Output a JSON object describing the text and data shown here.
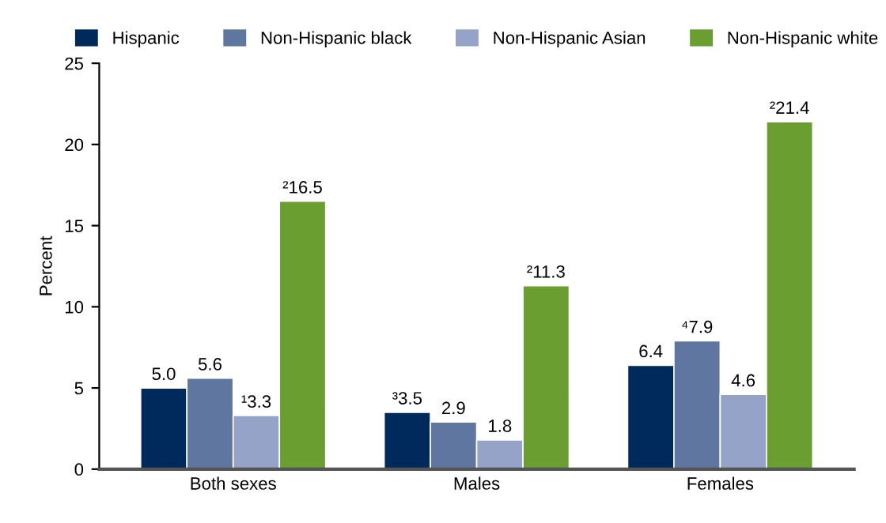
{
  "chart_data": {
    "type": "bar",
    "ylabel": "Percent",
    "categories": [
      "Both sexes",
      "Males",
      "Females"
    ],
    "series": [
      {
        "name": "Hispanic",
        "color": "#002a5c",
        "values": [
          5.0,
          3.5,
          6.4
        ],
        "value_labels": [
          "5.0",
          "³3.5",
          "6.4"
        ]
      },
      {
        "name": "Non-Hispanic black",
        "color": "#5f77a0",
        "values": [
          5.6,
          2.9,
          7.9
        ],
        "value_labels": [
          "5.6",
          "2.9",
          "⁴7.9"
        ]
      },
      {
        "name": "Non-Hispanic Asian",
        "color": "#94a3c7",
        "values": [
          3.3,
          1.8,
          4.6
        ],
        "value_labels": [
          "¹3.3",
          "1.8",
          "4.6"
        ]
      },
      {
        "name": "Non-Hispanic white",
        "color": "#6b9e31",
        "values": [
          16.5,
          11.3,
          21.4
        ],
        "value_labels": [
          "²16.5",
          "²11.3",
          "²21.4"
        ]
      }
    ],
    "ylim": [
      0,
      25
    ],
    "yticks": [
      0,
      5,
      10,
      15,
      20,
      25
    ],
    "grid": false,
    "legend": "top"
  }
}
